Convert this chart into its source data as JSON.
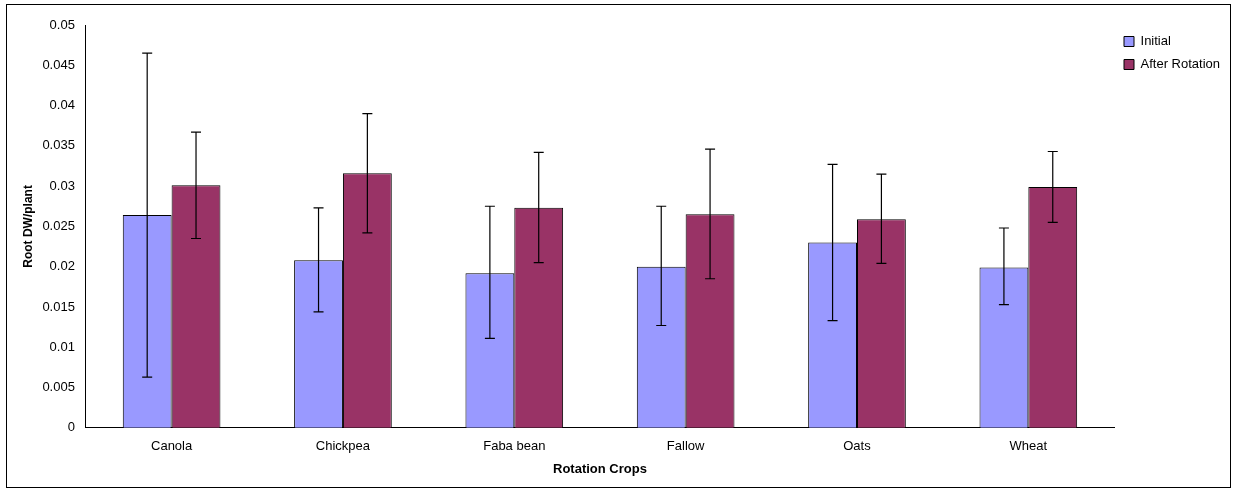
{
  "chart_data": {
    "type": "bar",
    "xlabel": "Rotation Crops",
    "ylabel": "Root DW/plant",
    "categories": [
      "Canola",
      "Chickpea",
      "Faba bean",
      "Fallow",
      "Oats",
      "Wheat"
    ],
    "series": [
      {
        "name": "Initial",
        "color": "#9999ff",
        "values": [
          0.0264,
          0.0208,
          0.0192,
          0.02,
          0.023,
          0.0199
        ],
        "errors": [
          [
            0.0063,
            0.0465
          ],
          [
            0.0144,
            0.0273
          ],
          [
            0.0111,
            0.0275
          ],
          [
            0.0127,
            0.0275
          ],
          [
            0.0133,
            0.0327
          ],
          [
            0.0153,
            0.0248
          ]
        ]
      },
      {
        "name": "After Rotation",
        "color": "#993366",
        "values": [
          0.0301,
          0.0316,
          0.0273,
          0.0265,
          0.0259,
          0.0299
        ],
        "errors": [
          [
            0.0235,
            0.0367
          ],
          [
            0.0242,
            0.039
          ],
          [
            0.0205,
            0.0342
          ],
          [
            0.0185,
            0.0346
          ],
          [
            0.0204,
            0.0315
          ],
          [
            0.0255,
            0.0343
          ]
        ]
      }
    ],
    "ylim": [
      0,
      0.05
    ],
    "yticks": [
      0,
      0.005,
      0.01,
      0.015,
      0.02,
      0.025,
      0.03,
      0.035,
      0.04,
      0.045,
      0.05
    ],
    "grid": false,
    "legend": "top right"
  }
}
